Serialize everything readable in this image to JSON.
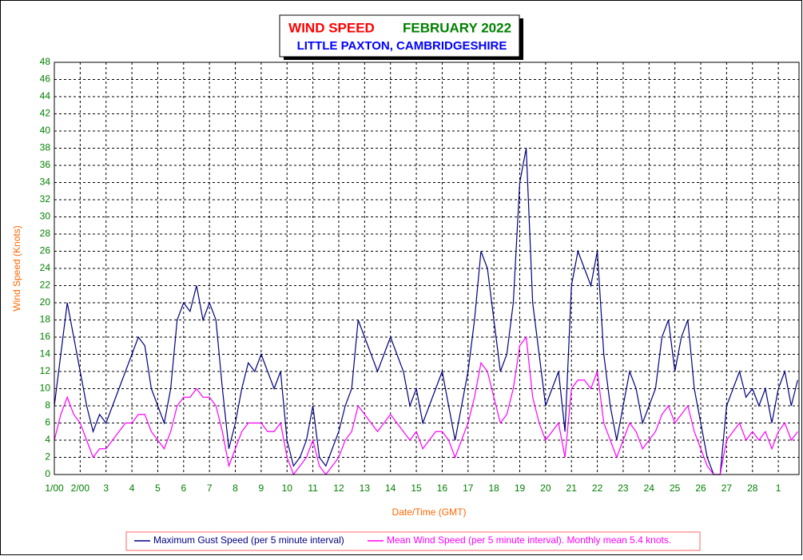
{
  "chart_data": {
    "type": "line",
    "title": "WIND SPEED",
    "subtitle": "FEBRUARY 2022",
    "location": "LITTLE PAXTON, CAMBRIDGESHIRE",
    "xlabel": "Date/Time (GMT)",
    "ylabel": "Wind Speed (Knots)",
    "xlim": [
      0,
      28.8
    ],
    "ylim": [
      0,
      48
    ],
    "yticks": [
      0,
      2,
      4,
      6,
      8,
      10,
      12,
      14,
      16,
      18,
      20,
      22,
      24,
      26,
      28,
      30,
      32,
      34,
      36,
      38,
      40,
      42,
      44,
      46,
      48
    ],
    "xticks": [
      {
        "value": 0,
        "label": "1/00"
      },
      {
        "value": 1,
        "label": "2/00"
      },
      {
        "value": 2,
        "label": "3"
      },
      {
        "value": 3,
        "label": "4"
      },
      {
        "value": 4,
        "label": "5"
      },
      {
        "value": 5,
        "label": "6"
      },
      {
        "value": 6,
        "label": "7"
      },
      {
        "value": 7,
        "label": "8"
      },
      {
        "value": 8,
        "label": "9"
      },
      {
        "value": 9,
        "label": "10"
      },
      {
        "value": 10,
        "label": "11"
      },
      {
        "value": 11,
        "label": "12"
      },
      {
        "value": 12,
        "label": "13"
      },
      {
        "value": 13,
        "label": "14"
      },
      {
        "value": 14,
        "label": "15"
      },
      {
        "value": 15,
        "label": "16"
      },
      {
        "value": 16,
        "label": "17"
      },
      {
        "value": 17,
        "label": "18"
      },
      {
        "value": 18,
        "label": "19"
      },
      {
        "value": 19,
        "label": "20"
      },
      {
        "value": 20,
        "label": "21"
      },
      {
        "value": 21,
        "label": "22"
      },
      {
        "value": 22,
        "label": "23"
      },
      {
        "value": 23,
        "label": "24"
      },
      {
        "value": 24,
        "label": "25"
      },
      {
        "value": 25,
        "label": "26"
      },
      {
        "value": 26,
        "label": "27"
      },
      {
        "value": 27,
        "label": "28"
      },
      {
        "value": 28,
        "label": "1"
      }
    ],
    "grid": true,
    "x": [
      0,
      0.25,
      0.5,
      0.75,
      1,
      1.25,
      1.5,
      1.75,
      2,
      2.25,
      2.5,
      2.75,
      3,
      3.25,
      3.5,
      3.75,
      4,
      4.25,
      4.5,
      4.75,
      5,
      5.25,
      5.5,
      5.75,
      6,
      6.25,
      6.5,
      6.75,
      7,
      7.25,
      7.5,
      7.75,
      8,
      8.25,
      8.5,
      8.75,
      9,
      9.25,
      9.5,
      9.75,
      10,
      10.25,
      10.5,
      10.75,
      11,
      11.25,
      11.5,
      11.75,
      12,
      12.25,
      12.5,
      12.75,
      13,
      13.25,
      13.5,
      13.75,
      14,
      14.25,
      14.5,
      14.75,
      15,
      15.25,
      15.5,
      15.75,
      16,
      16.25,
      16.5,
      16.75,
      17,
      17.25,
      17.5,
      17.75,
      18,
      18.25,
      18.5,
      18.75,
      19,
      19.25,
      19.5,
      19.75,
      20,
      20.25,
      20.5,
      20.75,
      21,
      21.25,
      21.5,
      21.75,
      22,
      22.25,
      22.5,
      22.75,
      23,
      23.25,
      23.5,
      23.75,
      24,
      24.25,
      24.5,
      24.75,
      25,
      25.25,
      25.5,
      25.75,
      26,
      26.25,
      26.5,
      26.75,
      27,
      27.25,
      27.5,
      27.75,
      28,
      28.25,
      28.5,
      28.75
    ],
    "series": [
      {
        "name": "Maximum Gust Speed (per 5 minute interval)",
        "color": "#000080",
        "values": [
          8,
          14,
          20,
          16,
          12,
          8,
          5,
          7,
          6,
          8,
          10,
          12,
          14,
          16,
          15,
          10,
          8,
          6,
          10,
          18,
          20,
          19,
          22,
          18,
          20,
          18,
          10,
          3,
          6,
          10,
          13,
          12,
          14,
          12,
          10,
          12,
          4,
          1,
          2,
          4,
          8,
          2,
          1,
          3,
          5,
          8,
          10,
          18,
          16,
          14,
          12,
          14,
          16,
          14,
          12,
          8,
          10,
          6,
          8,
          10,
          12,
          8,
          4,
          8,
          12,
          18,
          26,
          24,
          18,
          12,
          14,
          20,
          34,
          38,
          20,
          14,
          8,
          10,
          12,
          5,
          22,
          26,
          24,
          22,
          26,
          14,
          8,
          4,
          8,
          12,
          10,
          6,
          8,
          10,
          16,
          18,
          12,
          16,
          18,
          10,
          6,
          2,
          0,
          0,
          8,
          10,
          12,
          9,
          10,
          8,
          10,
          6,
          10,
          12,
          8,
          11
        ]
      },
      {
        "name": "Mean Wind Speed (per 5 minute interval). Monthly mean 5.4 knots.",
        "color": "#ff00ff",
        "values": [
          4,
          7,
          9,
          7,
          6,
          4,
          2,
          3,
          3,
          4,
          5,
          6,
          6,
          7,
          7,
          5,
          4,
          3,
          5,
          8,
          9,
          9,
          10,
          9,
          9,
          8,
          5,
          1,
          3,
          5,
          6,
          6,
          6,
          5,
          5,
          6,
          2,
          0,
          1,
          2,
          4,
          1,
          0,
          1,
          2,
          4,
          5,
          8,
          7,
          6,
          5,
          6,
          7,
          6,
          5,
          4,
          5,
          3,
          4,
          5,
          5,
          4,
          2,
          4,
          6,
          9,
          13,
          12,
          9,
          6,
          7,
          10,
          15,
          16,
          9,
          6,
          4,
          5,
          6,
          2,
          10,
          11,
          11,
          10,
          12,
          6,
          4,
          2,
          4,
          6,
          5,
          3,
          4,
          5,
          7,
          8,
          6,
          7,
          8,
          5,
          3,
          1,
          0,
          0,
          4,
          5,
          6,
          4,
          5,
          4,
          5,
          3,
          5,
          6,
          4,
          5
        ]
      }
    ]
  }
}
